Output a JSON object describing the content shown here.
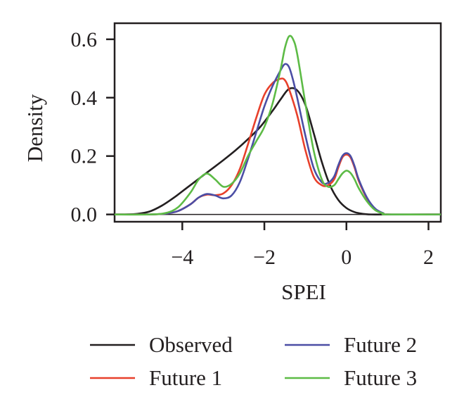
{
  "chart_data": {
    "type": "line",
    "xlabel": "SPEI",
    "ylabel": "Density",
    "xlim": [
      -5.65,
      2.3
    ],
    "ylim": [
      -0.025,
      0.655
    ],
    "x_ticks": [
      -4,
      -2,
      0,
      2
    ],
    "y_ticks": [
      0.0,
      0.2,
      0.4,
      0.6
    ],
    "x_tick_labels": [
      "−4",
      "−2",
      "0",
      "2"
    ],
    "y_tick_labels": [
      "0.0",
      "0.2",
      "0.4",
      "0.6"
    ],
    "baseline_y": 0,
    "grid": false,
    "legend_position": "bottom",
    "series": [
      {
        "name": "Observed",
        "color": "#231f20",
        "x": [
          -5.7,
          -5.4,
          -5.1,
          -4.8,
          -4.5,
          -4.2,
          -3.9,
          -3.6,
          -3.3,
          -3.0,
          -2.7,
          -2.4,
          -2.1,
          -1.8,
          -1.6,
          -1.4,
          -1.2,
          -1.0,
          -0.8,
          -0.6,
          -0.4,
          -0.2,
          0.0,
          0.2,
          0.4,
          0.6,
          1.0,
          2.3
        ],
        "y": [
          0,
          0,
          0.002,
          0.01,
          0.03,
          0.058,
          0.09,
          0.122,
          0.154,
          0.186,
          0.22,
          0.258,
          0.3,
          0.355,
          0.395,
          0.43,
          0.425,
          0.375,
          0.28,
          0.18,
          0.1,
          0.05,
          0.022,
          0.008,
          0.002,
          0,
          0,
          0
        ]
      },
      {
        "name": "Future 1",
        "color": "#e8402b",
        "x": [
          -5.7,
          -4.8,
          -4.4,
          -4.1,
          -3.8,
          -3.6,
          -3.4,
          -3.2,
          -3.0,
          -2.8,
          -2.6,
          -2.4,
          -2.2,
          -2.0,
          -1.8,
          -1.6,
          -1.5,
          -1.4,
          -1.2,
          -1.0,
          -0.8,
          -0.6,
          -0.45,
          -0.3,
          -0.2,
          -0.1,
          0.0,
          0.1,
          0.2,
          0.3,
          0.5,
          0.7,
          0.9,
          1.0,
          2.3
        ],
        "y": [
          0,
          0,
          0.003,
          0.012,
          0.035,
          0.058,
          0.068,
          0.066,
          0.072,
          0.1,
          0.155,
          0.24,
          0.33,
          0.41,
          0.45,
          0.465,
          0.46,
          0.43,
          0.34,
          0.22,
          0.13,
          0.1,
          0.1,
          0.12,
          0.16,
          0.195,
          0.205,
          0.195,
          0.16,
          0.115,
          0.055,
          0.018,
          0.004,
          0,
          0
        ]
      },
      {
        "name": "Future 2",
        "color": "#4b4ea5",
        "x": [
          -5.7,
          -4.8,
          -4.4,
          -4.1,
          -3.8,
          -3.6,
          -3.4,
          -3.2,
          -3.0,
          -2.8,
          -2.6,
          -2.4,
          -2.2,
          -2.0,
          -1.8,
          -1.6,
          -1.5,
          -1.4,
          -1.3,
          -1.2,
          -1.0,
          -0.8,
          -0.6,
          -0.45,
          -0.3,
          -0.2,
          -0.1,
          0.0,
          0.1,
          0.2,
          0.3,
          0.5,
          0.7,
          0.9,
          1.0,
          2.3
        ],
        "y": [
          0,
          0,
          0.003,
          0.012,
          0.035,
          0.058,
          0.07,
          0.065,
          0.055,
          0.065,
          0.11,
          0.19,
          0.28,
          0.37,
          0.44,
          0.495,
          0.515,
          0.505,
          0.46,
          0.4,
          0.27,
          0.16,
          0.11,
          0.108,
          0.13,
          0.168,
          0.2,
          0.21,
          0.2,
          0.165,
          0.12,
          0.058,
          0.02,
          0.004,
          0,
          0
        ]
      },
      {
        "name": "Future 3",
        "color": "#5dbb46",
        "x": [
          -5.7,
          -4.8,
          -4.4,
          -4.1,
          -3.8,
          -3.6,
          -3.4,
          -3.2,
          -3.0,
          -2.8,
          -2.6,
          -2.4,
          -2.2,
          -2.0,
          -1.8,
          -1.6,
          -1.5,
          -1.4,
          -1.3,
          -1.2,
          -1.0,
          -0.8,
          -0.6,
          -0.45,
          -0.3,
          -0.2,
          -0.1,
          0.0,
          0.1,
          0.2,
          0.3,
          0.5,
          0.7,
          0.9,
          1.0,
          2.3
        ],
        "y": [
          0,
          0,
          0.005,
          0.025,
          0.075,
          0.12,
          0.14,
          0.12,
          0.095,
          0.105,
          0.14,
          0.2,
          0.25,
          0.3,
          0.38,
          0.5,
          0.57,
          0.61,
          0.6,
          0.55,
          0.38,
          0.22,
          0.12,
          0.095,
          0.1,
          0.12,
          0.14,
          0.15,
          0.142,
          0.12,
          0.09,
          0.045,
          0.015,
          0.003,
          0,
          0
        ]
      }
    ]
  }
}
